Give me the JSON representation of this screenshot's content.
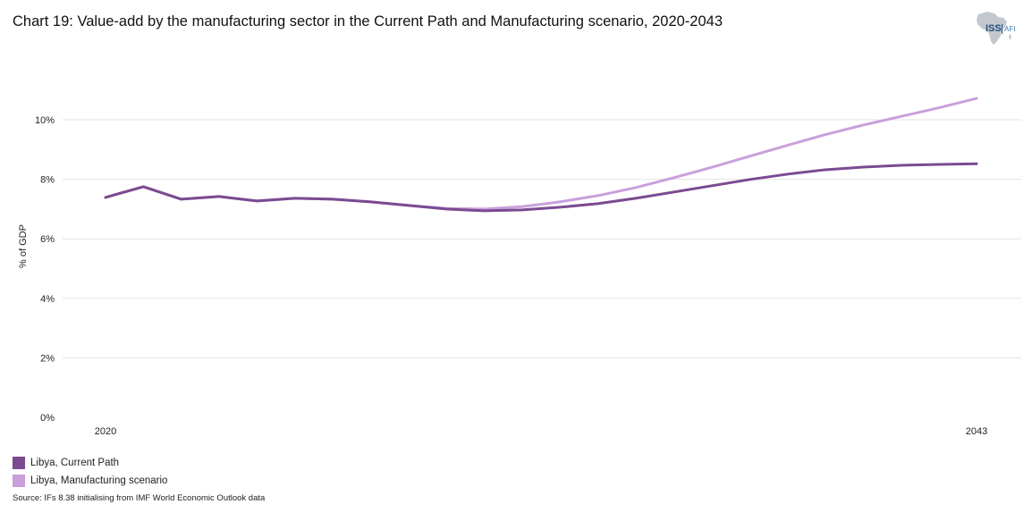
{
  "header": {
    "title": "Chart 19: Value-add by the manufacturing sector in the Current Path and Manufacturing scenario, 2020-2043"
  },
  "logo": {
    "text_left": "ISS",
    "text_right": "AFI",
    "icon": "africa-map-icon"
  },
  "source": "Source: IFs 8.38 initialising from IMF World Economic Outlook data",
  "chart_data": {
    "type": "line",
    "title": "Chart 19: Value-add by the manufacturing sector in the Current Path and Manufacturing scenario, 2020-2043",
    "xlabel": "",
    "ylabel": "% of GDP",
    "ylim": [
      0,
      10
    ],
    "yticks": [
      0,
      2,
      4,
      6,
      8,
      10
    ],
    "ytick_labels": [
      "0%",
      "2%",
      "4%",
      "6%",
      "8%",
      "10%"
    ],
    "xticks_labeled": [
      2020,
      2043
    ],
    "grid": true,
    "legend_position": "bottom-left",
    "x": [
      2020,
      2021,
      2022,
      2023,
      2024,
      2025,
      2026,
      2027,
      2028,
      2029,
      2030,
      2031,
      2032,
      2033,
      2034,
      2035,
      2036,
      2037,
      2038,
      2039,
      2040,
      2041,
      2042,
      2043
    ],
    "series": [
      {
        "name": "Libya, Current Path",
        "color": "#7b4a91",
        "values": [
          7.39,
          7.75,
          7.33,
          7.42,
          7.27,
          7.36,
          7.33,
          7.24,
          7.12,
          7.0,
          6.94,
          6.97,
          7.06,
          7.18,
          7.36,
          7.57,
          7.78,
          7.99,
          8.17,
          8.32,
          8.41,
          8.47,
          8.5,
          8.52
        ]
      },
      {
        "name": "Libya, Manufacturing scenario",
        "color": "#c9a0dc",
        "values": [
          7.39,
          7.75,
          7.33,
          7.42,
          7.27,
          7.36,
          7.33,
          7.24,
          7.12,
          7.02,
          7.0,
          7.08,
          7.24,
          7.45,
          7.72,
          8.05,
          8.4,
          8.77,
          9.14,
          9.5,
          9.82,
          10.11,
          10.4,
          10.72
        ]
      }
    ]
  }
}
